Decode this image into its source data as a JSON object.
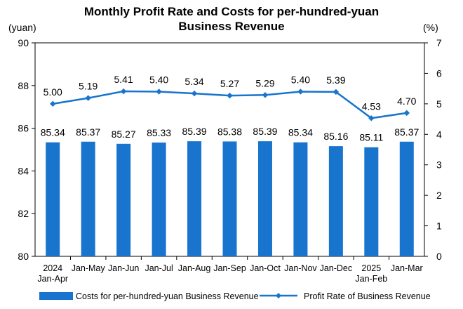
{
  "chart_data": {
    "type": "bar+line",
    "title_lines": [
      "Monthly Profit Rate and Costs for per-hundred-yuan",
      "Business Revenue"
    ],
    "y_left_unit": "(yuan)",
    "y_right_unit": "(%)",
    "categories": [
      [
        "2024",
        "Jan-Apr"
      ],
      [
        "Jan-May"
      ],
      [
        "Jan-Jun"
      ],
      [
        "Jan-Jul"
      ],
      [
        "Jan-Aug"
      ],
      [
        "Jan-Sep"
      ],
      [
        "Jan-Oct"
      ],
      [
        "Jan-Nov"
      ],
      [
        "Jan-Dec"
      ],
      [
        "2025",
        "Jan-Feb"
      ],
      [
        "Jan-Mar"
      ]
    ],
    "series": [
      {
        "name": "Costs for per-hundred-yuan Business Revenue",
        "type": "bar",
        "axis": "left",
        "color": "#1874CD",
        "values": [
          85.34,
          85.37,
          85.27,
          85.33,
          85.39,
          85.38,
          85.39,
          85.34,
          85.16,
          85.11,
          85.37
        ],
        "labels": [
          "85.34",
          "85.37",
          "85.27",
          "85.33",
          "85.39",
          "85.38",
          "85.39",
          "85.34",
          "85.16",
          "85.11",
          "85.37"
        ]
      },
      {
        "name": "Profit Rate of Business Revenue",
        "type": "line",
        "axis": "right",
        "color": "#1874CD",
        "values": [
          5.0,
          5.19,
          5.41,
          5.4,
          5.34,
          5.27,
          5.29,
          5.4,
          5.39,
          4.53,
          4.7
        ],
        "labels": [
          "5.00",
          "5.19",
          "5.41",
          "5.40",
          "5.34",
          "5.27",
          "5.29",
          "5.40",
          "5.39",
          "4.53",
          "4.70"
        ]
      }
    ],
    "y_left": {
      "min": 80,
      "max": 90,
      "ticks": [
        "80",
        "82",
        "84",
        "86",
        "88",
        "90"
      ]
    },
    "y_right": {
      "min": 0,
      "max": 7,
      "ticks": [
        "0",
        "1",
        "2",
        "3",
        "4",
        "5",
        "6",
        "7"
      ]
    },
    "grid": false,
    "legend_position": "bottom"
  }
}
